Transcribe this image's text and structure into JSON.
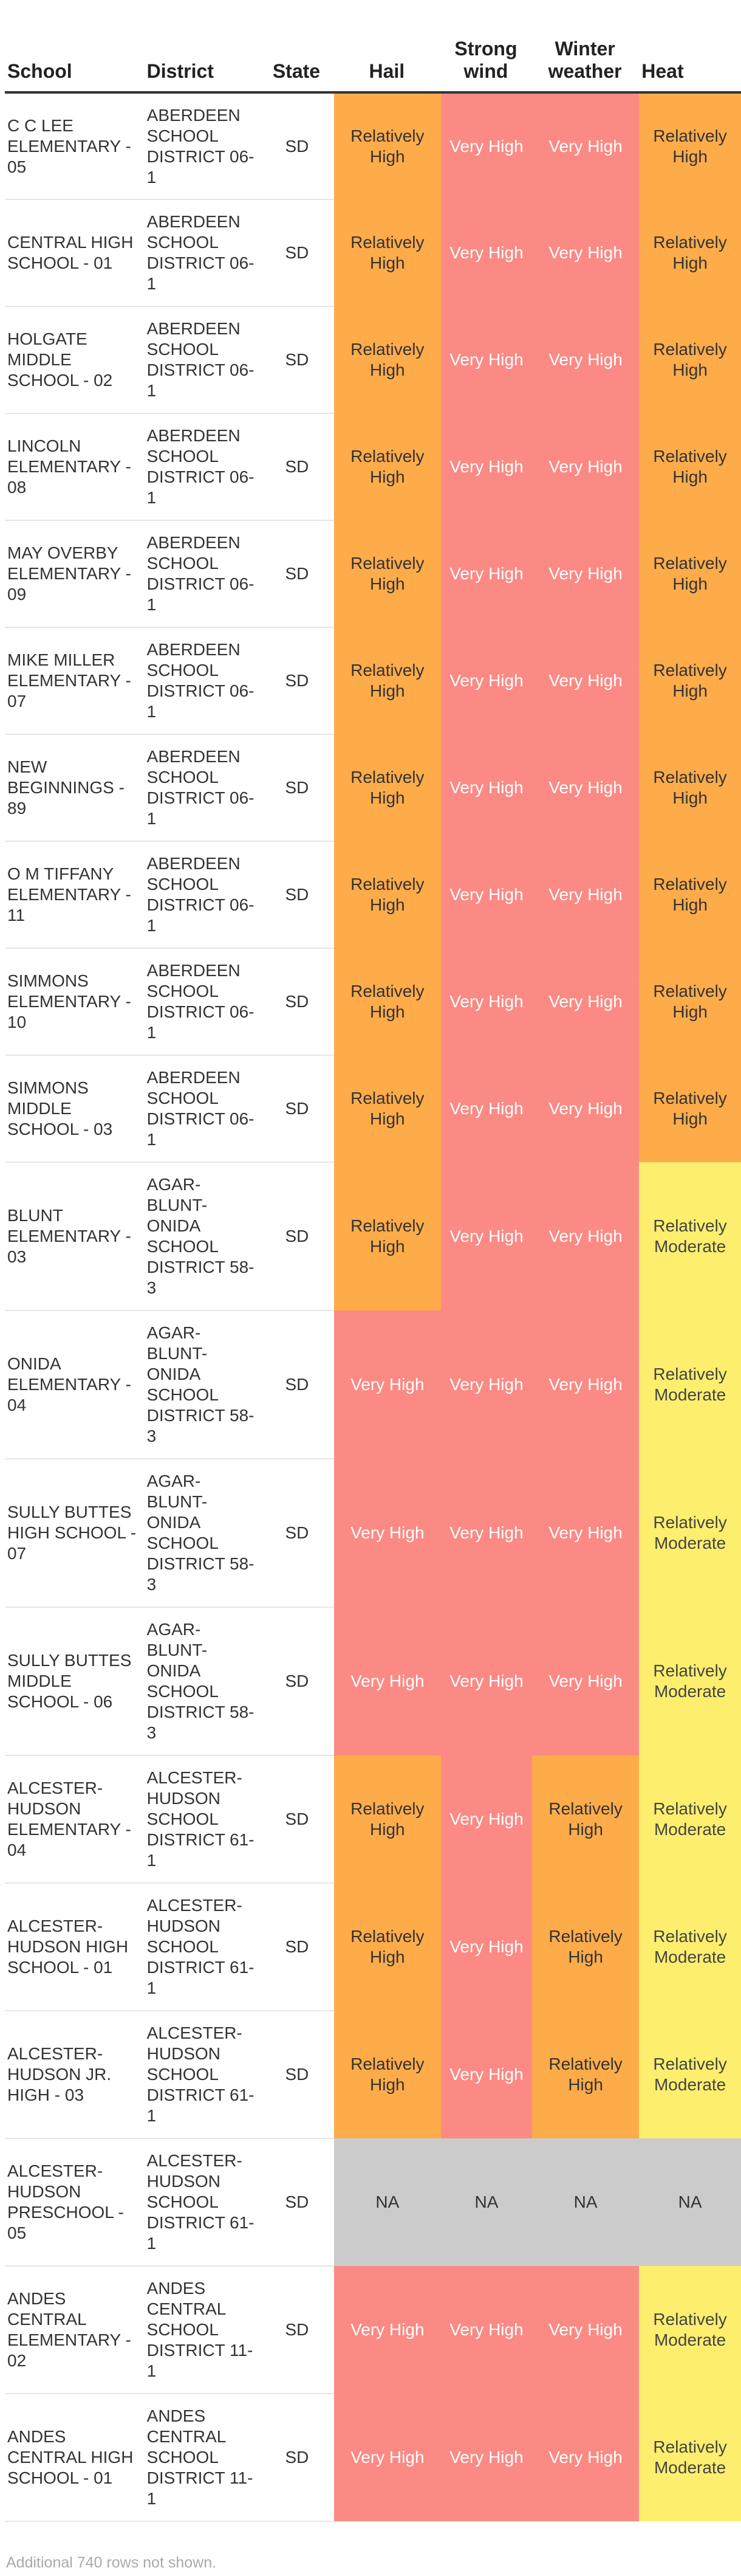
{
  "columns": [
    "School",
    "District",
    "State",
    "Hail",
    "Strong wind",
    "Winter weather",
    "Heat"
  ],
  "rows": [
    {
      "school": "C C LEE ELEMENTARY - 05",
      "district": "ABERDEEN SCHOOL DISTRICT 06-1",
      "state": "SD",
      "hail": "Relatively High",
      "wind": "Very High",
      "winter": "Very High",
      "heat": "Relatively High"
    },
    {
      "school": "CENTRAL HIGH SCHOOL - 01",
      "district": "ABERDEEN SCHOOL DISTRICT 06-1",
      "state": "SD",
      "hail": "Relatively High",
      "wind": "Very High",
      "winter": "Very High",
      "heat": "Relatively High"
    },
    {
      "school": "HOLGATE MIDDLE SCHOOL - 02",
      "district": "ABERDEEN SCHOOL DISTRICT 06-1",
      "state": "SD",
      "hail": "Relatively High",
      "wind": "Very High",
      "winter": "Very High",
      "heat": "Relatively High"
    },
    {
      "school": "LINCOLN ELEMENTARY - 08",
      "district": "ABERDEEN SCHOOL DISTRICT 06-1",
      "state": "SD",
      "hail": "Relatively High",
      "wind": "Very High",
      "winter": "Very High",
      "heat": "Relatively High"
    },
    {
      "school": "MAY OVERBY ELEMENTARY - 09",
      "district": "ABERDEEN SCHOOL DISTRICT 06-1",
      "state": "SD",
      "hail": "Relatively High",
      "wind": "Very High",
      "winter": "Very High",
      "heat": "Relatively High"
    },
    {
      "school": "MIKE MILLER ELEMENTARY - 07",
      "district": "ABERDEEN SCHOOL DISTRICT 06-1",
      "state": "SD",
      "hail": "Relatively High",
      "wind": "Very High",
      "winter": "Very High",
      "heat": "Relatively High"
    },
    {
      "school": "NEW BEGINNINGS - 89",
      "district": "ABERDEEN SCHOOL DISTRICT 06-1",
      "state": "SD",
      "hail": "Relatively High",
      "wind": "Very High",
      "winter": "Very High",
      "heat": "Relatively High"
    },
    {
      "school": "O M TIFFANY ELEMENTARY - 11",
      "district": "ABERDEEN SCHOOL DISTRICT 06-1",
      "state": "SD",
      "hail": "Relatively High",
      "wind": "Very High",
      "winter": "Very High",
      "heat": "Relatively High"
    },
    {
      "school": "SIMMONS ELEMENTARY - 10",
      "district": "ABERDEEN SCHOOL DISTRICT 06-1",
      "state": "SD",
      "hail": "Relatively High",
      "wind": "Very High",
      "winter": "Very High",
      "heat": "Relatively High"
    },
    {
      "school": "SIMMONS MIDDLE SCHOOL - 03",
      "district": "ABERDEEN SCHOOL DISTRICT 06-1",
      "state": "SD",
      "hail": "Relatively High",
      "wind": "Very High",
      "winter": "Very High",
      "heat": "Relatively High"
    },
    {
      "school": "BLUNT ELEMENTARY - 03",
      "district": "AGAR-BLUNT-ONIDA SCHOOL DISTRICT 58-3",
      "state": "SD",
      "hail": "Relatively High",
      "wind": "Very High",
      "winter": "Very High",
      "heat": "Relatively Moderate"
    },
    {
      "school": "ONIDA ELEMENTARY - 04",
      "district": "AGAR-BLUNT-ONIDA SCHOOL DISTRICT 58-3",
      "state": "SD",
      "hail": "Very High",
      "wind": "Very High",
      "winter": "Very High",
      "heat": "Relatively Moderate"
    },
    {
      "school": "SULLY BUTTES HIGH SCHOOL - 07",
      "district": "AGAR-BLUNT-ONIDA SCHOOL DISTRICT 58-3",
      "state": "SD",
      "hail": "Very High",
      "wind": "Very High",
      "winter": "Very High",
      "heat": "Relatively Moderate"
    },
    {
      "school": "SULLY BUTTES MIDDLE SCHOOL - 06",
      "district": "AGAR-BLUNT-ONIDA SCHOOL DISTRICT 58-3",
      "state": "SD",
      "hail": "Very High",
      "wind": "Very High",
      "winter": "Very High",
      "heat": "Relatively Moderate"
    },
    {
      "school": "ALCESTER-HUDSON ELEMENTARY - 04",
      "district": "ALCESTER-HUDSON SCHOOL DISTRICT 61-1",
      "state": "SD",
      "hail": "Relatively High",
      "wind": "Very High",
      "winter": "Relatively High",
      "heat": "Relatively Moderate"
    },
    {
      "school": "ALCESTER-HUDSON HIGH SCHOOL - 01",
      "district": "ALCESTER-HUDSON SCHOOL DISTRICT 61-1",
      "state": "SD",
      "hail": "Relatively High",
      "wind": "Very High",
      "winter": "Relatively High",
      "heat": "Relatively Moderate"
    },
    {
      "school": "ALCESTER-HUDSON JR. HIGH - 03",
      "district": "ALCESTER-HUDSON SCHOOL DISTRICT 61-1",
      "state": "SD",
      "hail": "Relatively High",
      "wind": "Very High",
      "winter": "Relatively High",
      "heat": "Relatively Moderate"
    },
    {
      "school": "ALCESTER-HUDSON PRESCHOOL - 05",
      "district": "ALCESTER-HUDSON SCHOOL DISTRICT 61-1",
      "state": "SD",
      "hail": "NA",
      "wind": "NA",
      "winter": "NA",
      "heat": "NA"
    },
    {
      "school": "ANDES CENTRAL ELEMENTARY - 02",
      "district": "ANDES CENTRAL SCHOOL DISTRICT 11-1",
      "state": "SD",
      "hail": "Very High",
      "wind": "Very High",
      "winter": "Very High",
      "heat": "Relatively Moderate"
    },
    {
      "school": "ANDES CENTRAL HIGH SCHOOL - 01",
      "district": "ANDES CENTRAL SCHOOL DISTRICT 11-1",
      "state": "SD",
      "hail": "Very High",
      "wind": "Very High",
      "winter": "Very High",
      "heat": "Relatively Moderate"
    }
  ],
  "colors": {
    "relatively_high": "#feab4a",
    "very_high": "#fb8a84",
    "relatively_moderate": "#fdef6d",
    "na": "#cbcbcb"
  },
  "footer_note": "Additional 740 rows not shown."
}
